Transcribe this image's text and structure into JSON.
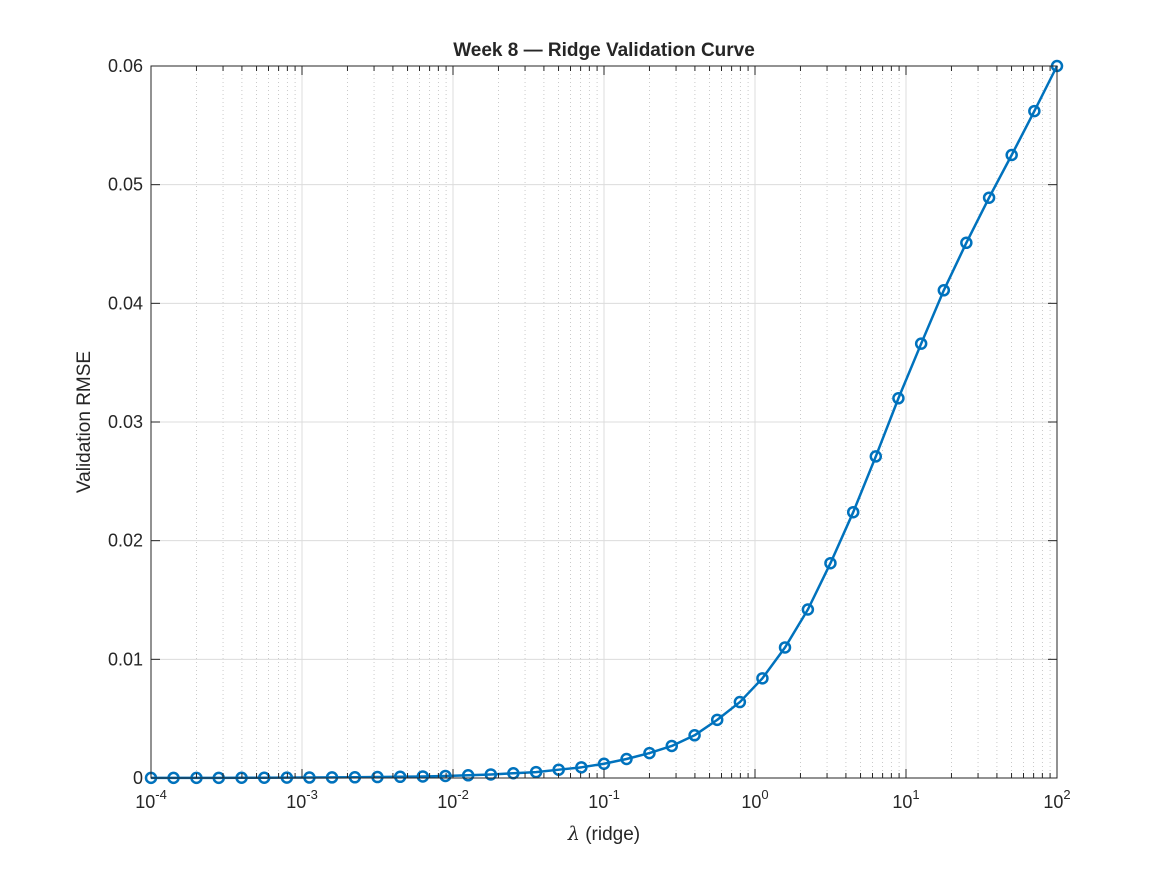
{
  "chart_data": {
    "type": "line",
    "title": "Week 8 — Ridge Validation Curve",
    "xlabel_symbol": "λ",
    "xlabel_text": " (ridge)",
    "ylabel": "Validation RMSE",
    "xscale": "log",
    "xlim": [
      0.0001,
      100
    ],
    "ylim": [
      0,
      0.06
    ],
    "grid": true,
    "minor_grid": true,
    "x_ticks": [
      {
        "base": "10",
        "exp": "-4"
      },
      {
        "base": "10",
        "exp": "-3"
      },
      {
        "base": "10",
        "exp": "-2"
      },
      {
        "base": "10",
        "exp": "-1"
      },
      {
        "base": "10",
        "exp": "0"
      },
      {
        "base": "10",
        "exp": "1"
      },
      {
        "base": "10",
        "exp": "2"
      }
    ],
    "y_ticks": [
      "0",
      "0.01",
      "0.02",
      "0.03",
      "0.04",
      "0.05",
      "0.06"
    ],
    "series": [
      {
        "color": "#0072BD",
        "marker": "circle",
        "x": [
          0.0001,
          0.000141,
          0.0002,
          0.000281,
          0.000398,
          0.000562,
          0.000794,
          0.00112,
          0.00158,
          0.00224,
          0.00316,
          0.00447,
          0.00631,
          0.00891,
          0.0126,
          0.0178,
          0.0251,
          0.0355,
          0.0501,
          0.0708,
          0.1,
          0.141,
          0.2,
          0.281,
          0.398,
          0.562,
          0.794,
          1.12,
          1.58,
          2.24,
          3.16,
          4.47,
          6.31,
          8.91,
          12.6,
          17.8,
          25.1,
          35.5,
          50.1,
          70.8,
          100
        ],
        "y": [
          1e-05,
          1e-05,
          1e-05,
          1e-05,
          2e-05,
          2e-05,
          3e-05,
          4e-05,
          5e-05,
          6e-05,
          8e-05,
          0.0001,
          0.00013,
          0.00017,
          0.00023,
          0.0003,
          0.0004,
          0.0005,
          0.0007,
          0.0009,
          0.0012,
          0.0016,
          0.0021,
          0.0027,
          0.0036,
          0.0049,
          0.0064,
          0.0084,
          0.011,
          0.0142,
          0.0181,
          0.0224,
          0.0271,
          0.032,
          0.0366,
          0.0411,
          0.0451,
          0.0489,
          0.0525,
          0.0562,
          0.06
        ]
      }
    ]
  }
}
